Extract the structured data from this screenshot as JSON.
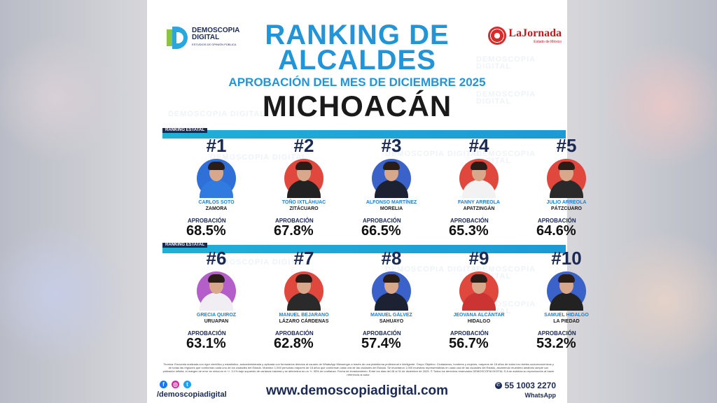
{
  "brand": {
    "name_line1": "DEMOSCOPIA",
    "name_line2": "DIGITAL",
    "tagline": "ESTUDIOS DE OPINIÓN PÚBLICA"
  },
  "partner": {
    "name": "LaJornada",
    "sub": "Estado de México"
  },
  "watermark": "DEMOSCOPIA DIGITAL",
  "title": "RANKING DE ALCALDES",
  "subtitle": "APROBACIÓN DEL MES DE DICIEMBRE 2025",
  "state": "MICHOACÁN",
  "chart_data": {
    "type": "table",
    "title": "RANKING DE ALCALDES",
    "subtitle": "APROBACIÓN DEL MES DE DICIEMBRE 2025",
    "region": "MICHOACÁN",
    "section_label": "RANKING ESTATAL",
    "value_label": "APROBACIÓN",
    "rows": [
      {
        "rank": "#1",
        "name": "CARLOS SOTO",
        "city": "ZAMORA",
        "value": "68.5%"
      },
      {
        "rank": "#2",
        "name": "TOÑO IXTLÁHUAC",
        "city": "ZITÁCUARO",
        "value": "67.8%"
      },
      {
        "rank": "#3",
        "name": "ALFONSO MARTÍNEZ",
        "city": "MORELIA",
        "value": "66.5%"
      },
      {
        "rank": "#4",
        "name": "FANNY ARREOLA",
        "city": "APATZINGÁN",
        "value": "65.3%"
      },
      {
        "rank": "#5",
        "name": "JULIO ARREOLA",
        "city": "PÁTZCUARO",
        "value": "64.6%"
      },
      {
        "rank": "#6",
        "name": "GRECIA QUIROZ",
        "city": "URUAPAN",
        "value": "63.1%"
      },
      {
        "rank": "#7",
        "name": "MANUEL BEJARANO",
        "city": "LÁZARO CÁRDENAS",
        "value": "62.8%"
      },
      {
        "rank": "#8",
        "name": "MANUEL GÁLVEZ",
        "city": "SAHUAYO",
        "value": "57.4%"
      },
      {
        "rank": "#9",
        "name": "JEOVANA ALCÁNTAR",
        "city": "HIDALGO",
        "value": "56.7%"
      },
      {
        "rank": "#10",
        "name": "SAMUEL HIDALGO",
        "city": "LA PIEDAD",
        "value": "53.2%"
      }
    ]
  },
  "colors": {
    "accent": "#2295d8",
    "navy": "#1a2a55",
    "bar": "#1b9ad6"
  },
  "footnote": "Técnica: Encuesta realizada con rigor científico y estadístico, autoadministrada y aplicada con formularios directos al usuario de WhatsApp Messenger a través de una plataforma profesional e inteligente. Grupo Objetivo: Ciudadanos, hombres y mujeres, mayores de 18 años de todos los niveles socioeconómicos y de todas las regiones que conforman cada uno de los ciudades del Estado. Muestra: 1,000 personas mayores de 18 años que conforman cada una de las ciudades del Estado. Se levantaron 1,000 muestras representativas en cada una de las ciudades del Estado, asumiendo muestreo aleatorio simple con población infinita, el margen de error se ubica en el +/- 3.1% bajo supuesto de varianza máxima y se determina en un +/- 95% de confianza. Fecha de levantamiento: Entre los días del 28 al 31 de diciembre de 2025. © Todos los derechos reservados DEMOSCOPIA DIGITAL S.A se autoriza su reproducción al hacer referencia al autor.",
  "footer": {
    "handle": "/demoscopiadigital",
    "url": "www.demoscopiadigital.com",
    "phone": "55 1003 2270",
    "phone_label": "WhatsApp",
    "social_icons": [
      "facebook-icon",
      "instagram-icon",
      "twitter-icon"
    ]
  }
}
